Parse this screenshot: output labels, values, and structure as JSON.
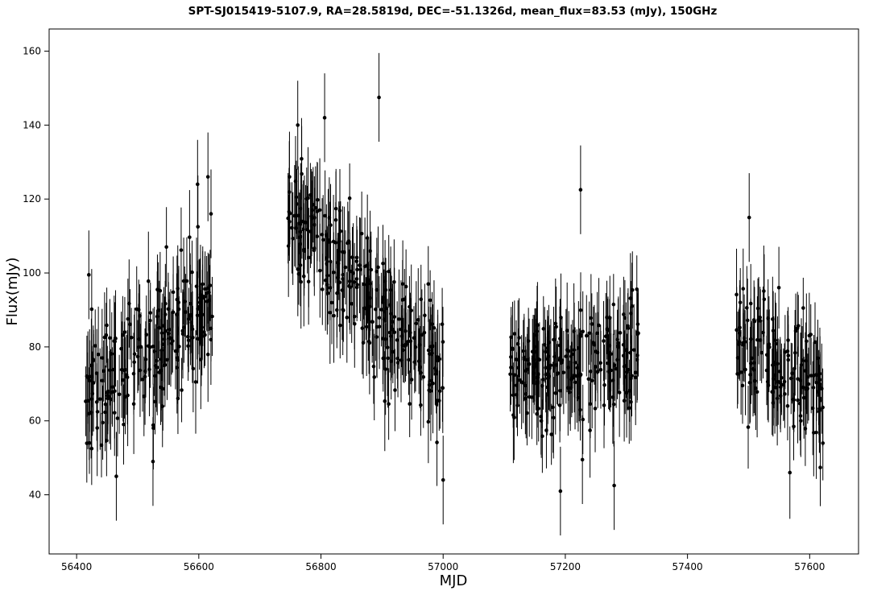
{
  "chart_data": {
    "type": "scatter",
    "title": "SPT-SJ015419-5107.9, RA=28.5819d, DEC=-51.1326d, mean_flux=83.53 (mJy), 150GHz",
    "xlabel": "MJD",
    "ylabel": "Flux(mJy)",
    "xlim": [
      56355,
      57680
    ],
    "ylim": [
      24,
      166
    ],
    "xticks": [
      56400,
      56600,
      56800,
      57000,
      57200,
      57400,
      57600
    ],
    "yticks": [
      40,
      60,
      80,
      100,
      120,
      140,
      160
    ],
    "grid": false,
    "legend": "none",
    "marker_color": "#000000",
    "error_bars": true,
    "segments": [
      {
        "x_start": 56414,
        "x_end": 56622,
        "y_start": 68,
        "y_end": 92,
        "amplitude": 13,
        "err_lo": 8,
        "err_hi": 14
      },
      {
        "x_start": 56745,
        "x_end": 57002,
        "y_start": 118,
        "y_end": 70,
        "amplitude": 13,
        "err_lo": 8,
        "err_hi": 14
      },
      {
        "x_start": 57108,
        "x_end": 57320,
        "y_start": 72,
        "y_end": 78,
        "amplitude": 12,
        "err_lo": 8,
        "err_hi": 13
      },
      {
        "x_start": 57478,
        "x_end": 57622,
        "y_start": 84,
        "y_end": 68,
        "amplitude": 12,
        "err_lo": 8,
        "err_hi": 13
      }
    ],
    "highlights": [
      {
        "x": 56420,
        "y": 99.5
      },
      {
        "x": 56598,
        "y": 124
      },
      {
        "x": 56615,
        "y": 126
      },
      {
        "x": 56620,
        "y": 116
      },
      {
        "x": 56762,
        "y": 140
      },
      {
        "x": 56806,
        "y": 142
      },
      {
        "x": 56895,
        "y": 147.5
      },
      {
        "x": 57225,
        "y": 122.5
      },
      {
        "x": 57192,
        "y": 41
      },
      {
        "x": 57280,
        "y": 42.5
      },
      {
        "x": 57000,
        "y": 44
      },
      {
        "x": 57501,
        "y": 115
      },
      {
        "x": 56525,
        "y": 49
      },
      {
        "x": 56465,
        "y": 45
      },
      {
        "x": 57228,
        "y": 49.5
      }
    ]
  }
}
